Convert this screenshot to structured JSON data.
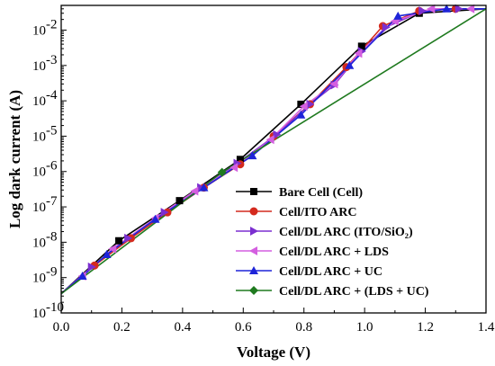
{
  "chart_data": {
    "type": "line",
    "xlabel": "Voltage (V)",
    "ylabel": "Log dark current (A)",
    "xlim": [
      0.0,
      1.4
    ],
    "ylim": [
      1e-10,
      0.05
    ],
    "yscale": "log",
    "x_ticks": [
      "0.0",
      "0.2",
      "0.4",
      "0.6",
      "0.8",
      "1.0",
      "1.2",
      "1.4"
    ],
    "y_ticks": [
      {
        "base": "10",
        "exp": "-10"
      },
      {
        "base": "10",
        "exp": "-9"
      },
      {
        "base": "10",
        "exp": "-8"
      },
      {
        "base": "10",
        "exp": "-7"
      },
      {
        "base": "10",
        "exp": "-6"
      },
      {
        "base": "10",
        "exp": "-5"
      },
      {
        "base": "10",
        "exp": "-4"
      },
      {
        "base": "10",
        "exp": "-3"
      },
      {
        "base": "10",
        "exp": "-2"
      }
    ],
    "legend_position": "bottom-right",
    "series": [
      {
        "name": "Bare Cell (Cell)",
        "color": "#000000",
        "marker": "square",
        "x": [
          0.0,
          0.19,
          0.39,
          0.59,
          0.79,
          0.99,
          1.18,
          1.4
        ],
        "y": [
          3.5e-10,
          1.1e-08,
          1.5e-07,
          2.2e-06,
          8e-05,
          0.0035,
          0.03,
          0.04
        ]
      },
      {
        "name": "Cell/ITO ARC",
        "color": "#d42a1e",
        "marker": "circle",
        "x": [
          0.0,
          0.11,
          0.23,
          0.35,
          0.47,
          0.59,
          0.7,
          0.82,
          0.94,
          1.06,
          1.18,
          1.3,
          1.4
        ],
        "y": [
          3.5e-10,
          2.2e-09,
          1.3e-08,
          7e-08,
          3.5e-07,
          1.6e-06,
          1e-05,
          8e-05,
          0.0009,
          0.013,
          0.035,
          0.04,
          0.04
        ]
      },
      {
        "name": "Cell/DL ARC (ITO/SiO₂)",
        "color": "#7b2fd0",
        "marker": "triangle-right",
        "x": [
          0.0,
          0.1,
          0.22,
          0.34,
          0.46,
          0.58,
          0.71,
          0.82,
          0.9,
          0.99,
          1.07,
          1.19,
          1.31,
          1.4
        ],
        "y": [
          3.5e-10,
          2e-09,
          1.3e-08,
          7e-08,
          3.5e-07,
          1.7e-06,
          1.1e-05,
          8e-05,
          0.00028,
          0.0025,
          0.012,
          0.035,
          0.04,
          0.04
        ]
      },
      {
        "name": "Cell/DL ARC + LDS",
        "color": "#d45fe0",
        "marker": "triangle-left",
        "x": [
          0.0,
          0.07,
          0.17,
          0.31,
          0.44,
          0.57,
          0.69,
          0.8,
          0.9,
          0.98,
          1.1,
          1.22,
          1.35,
          1.4
        ],
        "y": [
          3.5e-10,
          1.1e-09,
          6.5e-09,
          4.8e-08,
          2.8e-07,
          1.3e-06,
          8e-06,
          7e-05,
          0.0003,
          0.0022,
          0.018,
          0.04,
          0.04,
          0.04
        ]
      },
      {
        "name": "Cell/DL ARC + UC",
        "color": "#1e24d8",
        "marker": "triangle-up",
        "x": [
          0.0,
          0.07,
          0.15,
          0.31,
          0.47,
          0.63,
          0.79,
          0.95,
          1.11,
          1.27,
          1.4
        ],
        "y": [
          3.5e-10,
          1.1e-09,
          4.5e-09,
          4.5e-08,
          3.5e-07,
          2.8e-06,
          4e-05,
          0.001,
          0.025,
          0.04,
          0.04
        ]
      },
      {
        "name": "Cell/DL ARC + (LDS + UC)",
        "color": "#1f7a1f",
        "marker": "diamond",
        "x": [
          0.0,
          0.53,
          1.4
        ],
        "y": [
          3.5e-10,
          9.5e-07,
          0.04
        ]
      }
    ]
  }
}
